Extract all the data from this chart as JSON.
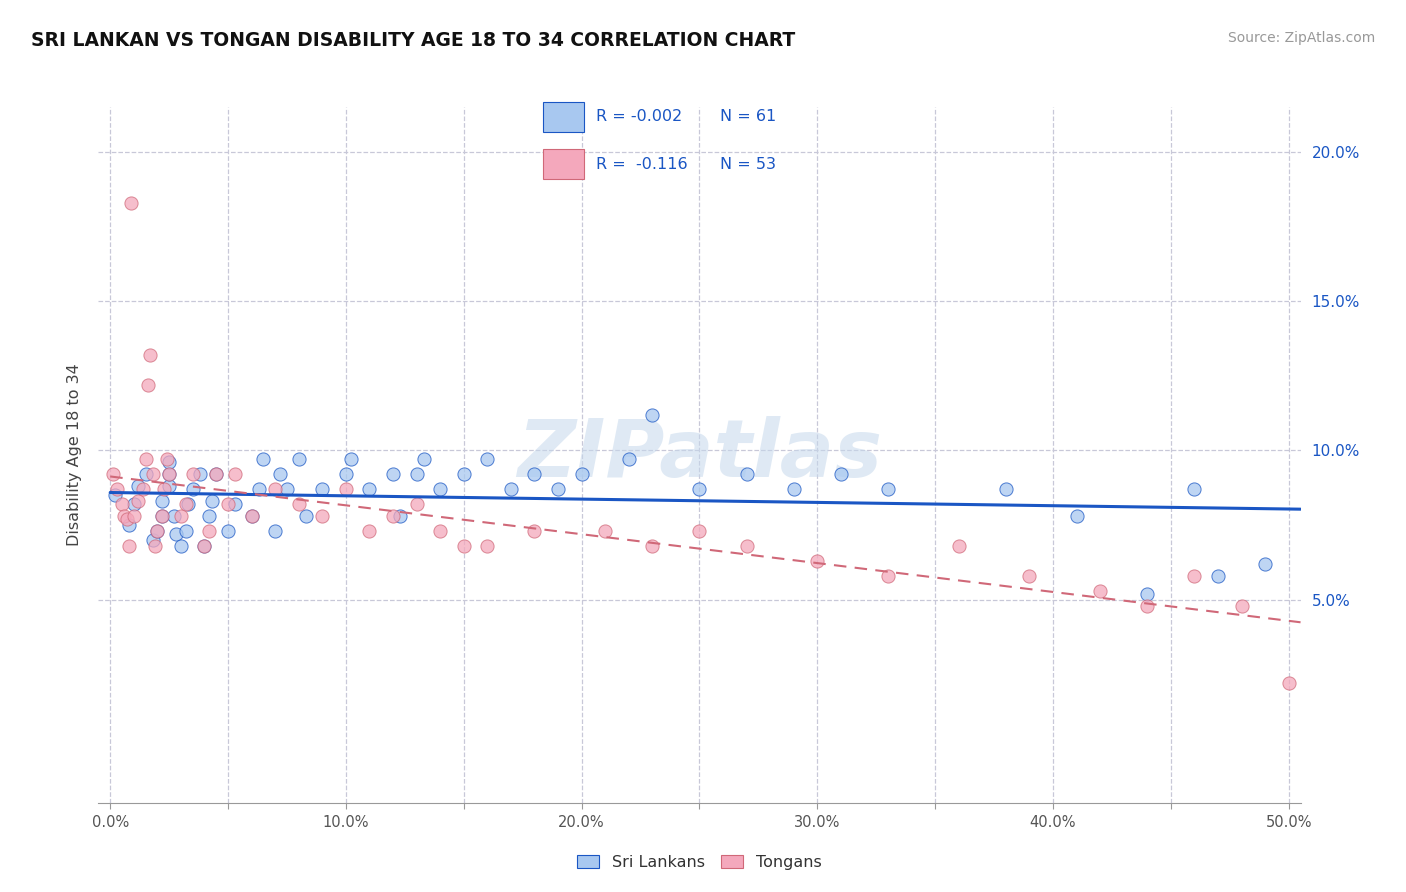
{
  "title": "SRI LANKAN VS TONGAN DISABILITY AGE 18 TO 34 CORRELATION CHART",
  "source": "Source: ZipAtlas.com",
  "ylabel": "Disability Age 18 to 34",
  "xlim": [
    -0.005,
    0.505
  ],
  "ylim": [
    -0.01,
    0.215
  ],
  "plot_xlim": [
    0.0,
    0.5
  ],
  "plot_ylim": [
    0.0,
    0.2
  ],
  "xticks": [
    0.0,
    0.05,
    0.1,
    0.15,
    0.2,
    0.25,
    0.3,
    0.35,
    0.4,
    0.45,
    0.5
  ],
  "xticklabels": [
    "0.0%",
    "",
    "10.0%",
    "",
    "20.0%",
    "",
    "30.0%",
    "",
    "40.0%",
    "",
    "50.0%"
  ],
  "yticks": [
    0.05,
    0.1,
    0.15,
    0.2
  ],
  "yticklabels": [
    "5.0%",
    "10.0%",
    "15.0%",
    "20.0%"
  ],
  "sri_lankan_color": "#A8C8F0",
  "tongan_color": "#F4A8BC",
  "sri_lankan_line_color": "#1A56C4",
  "tongan_line_color": "#D06878",
  "background_color": "#ffffff",
  "grid_color": "#c8c8d8",
  "legend_R_sri": "-0.002",
  "legend_N_sri": "61",
  "legend_R_ton": "-0.116",
  "legend_N_ton": "53",
  "watermark_text": "ZIPatlas",
  "sri_lankans_scatter_x": [
    0.002,
    0.008,
    0.01,
    0.012,
    0.015,
    0.018,
    0.02,
    0.022,
    0.022,
    0.025,
    0.025,
    0.025,
    0.027,
    0.028,
    0.03,
    0.032,
    0.033,
    0.035,
    0.038,
    0.04,
    0.042,
    0.043,
    0.045,
    0.05,
    0.053,
    0.06,
    0.063,
    0.065,
    0.07,
    0.072,
    0.075,
    0.08,
    0.083,
    0.09,
    0.1,
    0.102,
    0.11,
    0.12,
    0.123,
    0.13,
    0.133,
    0.14,
    0.15,
    0.16,
    0.17,
    0.18,
    0.19,
    0.2,
    0.22,
    0.23,
    0.25,
    0.27,
    0.29,
    0.31,
    0.33,
    0.38,
    0.41,
    0.44,
    0.46,
    0.47,
    0.49
  ],
  "sri_lankans_scatter_y": [
    0.085,
    0.075,
    0.082,
    0.088,
    0.092,
    0.07,
    0.073,
    0.078,
    0.083,
    0.088,
    0.092,
    0.096,
    0.078,
    0.072,
    0.068,
    0.073,
    0.082,
    0.087,
    0.092,
    0.068,
    0.078,
    0.083,
    0.092,
    0.073,
    0.082,
    0.078,
    0.087,
    0.097,
    0.073,
    0.092,
    0.087,
    0.097,
    0.078,
    0.087,
    0.092,
    0.097,
    0.087,
    0.092,
    0.078,
    0.092,
    0.097,
    0.087,
    0.092,
    0.097,
    0.087,
    0.092,
    0.087,
    0.092,
    0.097,
    0.112,
    0.087,
    0.092,
    0.087,
    0.092,
    0.087,
    0.087,
    0.078,
    0.052,
    0.087,
    0.058,
    0.062
  ],
  "tongans_scatter_x": [
    0.001,
    0.003,
    0.005,
    0.006,
    0.007,
    0.008,
    0.009,
    0.01,
    0.012,
    0.014,
    0.015,
    0.016,
    0.017,
    0.018,
    0.019,
    0.02,
    0.022,
    0.023,
    0.024,
    0.025,
    0.03,
    0.032,
    0.035,
    0.04,
    0.042,
    0.045,
    0.05,
    0.053,
    0.06,
    0.07,
    0.08,
    0.09,
    0.1,
    0.11,
    0.12,
    0.13,
    0.14,
    0.15,
    0.16,
    0.18,
    0.21,
    0.23,
    0.25,
    0.27,
    0.3,
    0.33,
    0.36,
    0.39,
    0.42,
    0.44,
    0.46,
    0.48,
    0.5
  ],
  "tongans_scatter_y": [
    0.092,
    0.087,
    0.082,
    0.078,
    0.077,
    0.068,
    0.183,
    0.078,
    0.083,
    0.087,
    0.097,
    0.122,
    0.132,
    0.092,
    0.068,
    0.073,
    0.078,
    0.087,
    0.097,
    0.092,
    0.078,
    0.082,
    0.092,
    0.068,
    0.073,
    0.092,
    0.082,
    0.092,
    0.078,
    0.087,
    0.082,
    0.078,
    0.087,
    0.073,
    0.078,
    0.082,
    0.073,
    0.068,
    0.068,
    0.073,
    0.073,
    0.068,
    0.073,
    0.068,
    0.063,
    0.058,
    0.068,
    0.058,
    0.053,
    0.048,
    0.058,
    0.048,
    0.022
  ]
}
